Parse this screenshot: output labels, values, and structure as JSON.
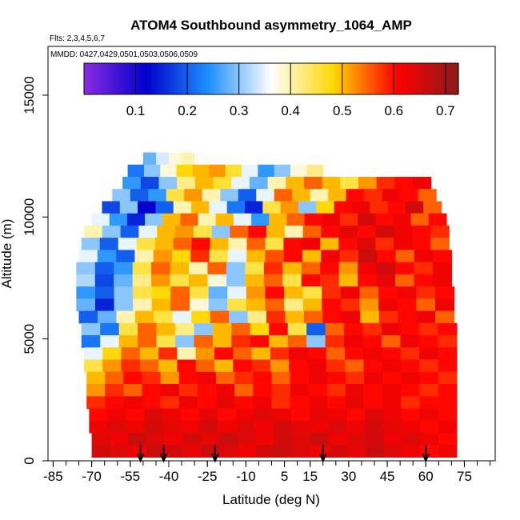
{
  "chart_data": {
    "type": "heatmap",
    "title": "ATOM4 Southbound asymmetry_1064_AMP",
    "flights_note": "Flts: 2,3,4,5,6,7",
    "dates_note": "MMDD: 0427,0429,0501,0503,0506,0509",
    "xlabel": "Latitude (deg N)",
    "ylabel": "Altitude (m)",
    "xlim": [
      -87,
      87
    ],
    "ylim": [
      0,
      17000
    ],
    "x_ticks": [
      -85,
      -70,
      -55,
      -40,
      -25,
      -10,
      5,
      15,
      30,
      45,
      60,
      75
    ],
    "x_tick_labels": [
      "-85",
      "-70",
      "-55",
      "-40",
      "-25",
      "-10",
      "5",
      "15",
      "30",
      "45",
      "60",
      "75"
    ],
    "y_ticks": [
      0,
      5000,
      10000,
      15000
    ],
    "y_tick_labels": [
      "0",
      "5000",
      "10000",
      "15000"
    ],
    "colorbar": {
      "range": [
        0.0,
        0.725
      ],
      "ticks": [
        0.1,
        0.2,
        0.3,
        0.4,
        0.5,
        0.6,
        0.7
      ],
      "tick_labels": [
        "0.1",
        "0.2",
        "0.3",
        "0.4",
        "0.5",
        "0.6",
        "0.7"
      ],
      "colors": [
        "#8a2be2",
        "#0000cd",
        "#1e90ff",
        "#ffffff",
        "#ffd700",
        "#ff0000",
        "#8b1a1a"
      ]
    },
    "legend_placement": "top (horizontal color bar inside plot)",
    "grid": false,
    "arrows_latitude": [
      -51,
      -42,
      -22,
      20,
      60
    ],
    "rows": [
      {
        "alt": 12400,
        "lat_min": -50,
        "lat_max": -25,
        "values": [
          0.28,
          0.34,
          0.38,
          0.4,
          0.36
        ]
      },
      {
        "alt": 11900,
        "lat_min": -56,
        "lat_max": 20,
        "values": [
          0.22,
          0.3,
          0.38,
          0.48,
          0.5,
          0.52,
          0.46,
          0.35,
          0.25,
          0.3,
          0.38,
          0.42
        ]
      },
      {
        "alt": 11400,
        "lat_min": -58,
        "lat_max": 62,
        "values": [
          0.25,
          0.18,
          0.3,
          0.42,
          0.5,
          0.46,
          0.35,
          0.28,
          0.4,
          0.5,
          0.55,
          0.5,
          0.45,
          0.52,
          0.58,
          0.6,
          0.62
        ]
      },
      {
        "alt": 10900,
        "lat_min": -62,
        "lat_max": 64,
        "values": [
          0.3,
          0.2,
          0.25,
          0.45,
          0.52,
          0.4,
          0.3,
          0.2,
          0.35,
          0.55,
          0.5,
          0.4,
          0.5,
          0.6,
          0.58,
          0.62,
          0.6,
          0.55
        ]
      },
      {
        "alt": 10400,
        "lat_min": -66,
        "lat_max": 66,
        "values": [
          0.18,
          0.3,
          0.12,
          0.2,
          0.4,
          0.5,
          0.35,
          0.22,
          0.15,
          0.45,
          0.52,
          0.3,
          0.48,
          0.6,
          0.62,
          0.58,
          0.6,
          0.65,
          0.55
        ]
      },
      {
        "alt": 9900,
        "lat_min": -70,
        "lat_max": 68,
        "values": [
          0.35,
          0.25,
          0.15,
          0.3,
          0.5,
          0.55,
          0.4,
          0.5,
          0.35,
          0.25,
          0.5,
          0.55,
          0.6,
          0.62,
          0.58,
          0.65,
          0.6,
          0.62,
          0.55,
          0.6
        ]
      },
      {
        "alt": 9400,
        "lat_min": -73,
        "lat_max": 69,
        "values": [
          0.4,
          0.3,
          0.2,
          0.35,
          0.5,
          0.52,
          0.45,
          0.3,
          0.55,
          0.6,
          0.5,
          0.4,
          0.55,
          0.6,
          0.63,
          0.6,
          0.65,
          0.62,
          0.6,
          0.58
        ]
      },
      {
        "alt": 8900,
        "lat_min": -74,
        "lat_max": 69,
        "values": [
          0.3,
          0.2,
          0.35,
          0.45,
          0.5,
          0.55,
          0.6,
          0.5,
          0.4,
          0.55,
          0.45,
          0.6,
          0.62,
          0.5,
          0.6,
          0.64,
          0.58,
          0.62,
          0.6,
          0.55
        ]
      },
      {
        "alt": 8400,
        "lat_min": -75,
        "lat_max": 70,
        "values": [
          0.35,
          0.25,
          0.2,
          0.4,
          0.52,
          0.48,
          0.58,
          0.45,
          0.35,
          0.5,
          0.56,
          0.6,
          0.5,
          0.62,
          0.58,
          0.66,
          0.6,
          0.55,
          0.62,
          0.6
        ]
      },
      {
        "alt": 7900,
        "lat_min": -76,
        "lat_max": 70,
        "values": [
          0.3,
          0.2,
          0.25,
          0.45,
          0.55,
          0.5,
          0.4,
          0.55,
          0.3,
          0.45,
          0.58,
          0.5,
          0.55,
          0.6,
          0.52,
          0.62,
          0.65,
          0.6,
          0.58,
          0.62
        ]
      },
      {
        "alt": 7400,
        "lat_min": -76,
        "lat_max": 70,
        "values": [
          0.32,
          0.18,
          0.28,
          0.42,
          0.52,
          0.45,
          0.5,
          0.38,
          0.3,
          0.5,
          0.55,
          0.45,
          0.6,
          0.58,
          0.5,
          0.6,
          0.63,
          0.55,
          0.6,
          0.62
        ]
      },
      {
        "alt": 6900,
        "lat_min": -76,
        "lat_max": 71,
        "values": [
          0.25,
          0.2,
          0.3,
          0.45,
          0.48,
          0.55,
          0.45,
          0.28,
          0.35,
          0.52,
          0.6,
          0.5,
          0.45,
          0.58,
          0.62,
          0.55,
          0.6,
          0.62,
          0.58,
          0.6
        ]
      },
      {
        "alt": 6400,
        "lat_min": -76,
        "lat_max": 71,
        "values": [
          0.28,
          0.15,
          0.3,
          0.4,
          0.5,
          0.55,
          0.38,
          0.3,
          0.45,
          0.5,
          0.55,
          0.42,
          0.5,
          0.6,
          0.58,
          0.52,
          0.62,
          0.6,
          0.55,
          0.62
        ]
      },
      {
        "alt": 5900,
        "lat_min": -75,
        "lat_max": 71,
        "values": [
          0.2,
          0.28,
          0.4,
          0.5,
          0.45,
          0.35,
          0.48,
          0.55,
          0.3,
          0.42,
          0.58,
          0.5,
          0.55,
          0.6,
          0.62,
          0.5,
          0.58,
          0.6,
          0.62,
          0.55
        ]
      },
      {
        "alt": 5400,
        "lat_min": -74,
        "lat_max": 72,
        "values": [
          0.3,
          0.22,
          0.45,
          0.55,
          0.5,
          0.42,
          0.3,
          0.5,
          0.55,
          0.48,
          0.6,
          0.45,
          0.2,
          0.55,
          0.6,
          0.58,
          0.62,
          0.6,
          0.58,
          0.6
        ]
      },
      {
        "alt": 4900,
        "lat_min": -74,
        "lat_max": 72,
        "values": [
          0.22,
          0.35,
          0.5,
          0.55,
          0.45,
          0.3,
          0.55,
          0.5,
          0.58,
          0.6,
          0.5,
          0.55,
          0.3,
          0.58,
          0.62,
          0.6,
          0.55,
          0.62,
          0.6,
          0.58
        ]
      },
      {
        "alt": 4400,
        "lat_min": -73,
        "lat_max": 72,
        "values": [
          0.35,
          0.48,
          0.55,
          0.5,
          0.58,
          0.4,
          0.52,
          0.6,
          0.55,
          0.5,
          0.58,
          0.62,
          0.6,
          0.55,
          0.6,
          0.62,
          0.6,
          0.58,
          0.62,
          0.6
        ]
      },
      {
        "alt": 3900,
        "lat_min": -73,
        "lat_max": 72,
        "values": [
          0.45,
          0.52,
          0.58,
          0.55,
          0.5,
          0.6,
          0.55,
          0.5,
          0.6,
          0.58,
          0.52,
          0.6,
          0.62,
          0.58,
          0.55,
          0.6,
          0.62,
          0.6,
          0.58,
          0.6
        ]
      },
      {
        "alt": 3400,
        "lat_min": -72,
        "lat_max": 72,
        "values": [
          0.5,
          0.55,
          0.6,
          0.58,
          0.52,
          0.6,
          0.62,
          0.55,
          0.58,
          0.6,
          0.55,
          0.6,
          0.62,
          0.6,
          0.58,
          0.62,
          0.6,
          0.62,
          0.6,
          0.58
        ]
      },
      {
        "alt": 2900,
        "lat_min": -72,
        "lat_max": 72,
        "values": [
          0.52,
          0.58,
          0.55,
          0.6,
          0.62,
          0.58,
          0.6,
          0.62,
          0.55,
          0.6,
          0.58,
          0.62,
          0.6,
          0.58,
          0.62,
          0.6,
          0.62,
          0.6,
          0.58,
          0.6
        ]
      },
      {
        "alt": 2400,
        "lat_min": -72,
        "lat_max": 72,
        "values": [
          0.58,
          0.6,
          0.62,
          0.6,
          0.58,
          0.62,
          0.6,
          0.63,
          0.6,
          0.62,
          0.58,
          0.6,
          0.62,
          0.6,
          0.63,
          0.6,
          0.62,
          0.58,
          0.6,
          0.6
        ]
      },
      {
        "alt": 1900,
        "lat_min": -71,
        "lat_max": 72,
        "values": [
          0.6,
          0.62,
          0.6,
          0.64,
          0.62,
          0.6,
          0.63,
          0.6,
          0.62,
          0.64,
          0.62,
          0.6,
          0.63,
          0.62,
          0.6,
          0.64,
          0.62,
          0.6,
          0.62,
          0.6
        ]
      },
      {
        "alt": 1400,
        "lat_min": -71,
        "lat_max": 72,
        "values": [
          0.62,
          0.64,
          0.62,
          0.65,
          0.63,
          0.62,
          0.65,
          0.62,
          0.64,
          0.62,
          0.65,
          0.63,
          0.62,
          0.64,
          0.62,
          0.65,
          0.63,
          0.62,
          0.6,
          0.62
        ]
      },
      {
        "alt": 900,
        "lat_min": -70,
        "lat_max": 72,
        "values": [
          0.64,
          0.62,
          0.66,
          0.64,
          0.62,
          0.65,
          0.63,
          0.66,
          0.64,
          0.62,
          0.65,
          0.64,
          0.66,
          0.62,
          0.64,
          0.65,
          0.62,
          0.64,
          0.62,
          0.6
        ]
      },
      {
        "alt": 400,
        "lat_min": -70,
        "lat_max": 72,
        "values": [
          0.65,
          0.64,
          0.62,
          0.66,
          0.65,
          0.63,
          0.66,
          0.64,
          0.62,
          0.65,
          0.66,
          0.64,
          0.62,
          0.65,
          0.63,
          0.66,
          0.64,
          0.62,
          0.6,
          0.62
        ]
      }
    ]
  }
}
